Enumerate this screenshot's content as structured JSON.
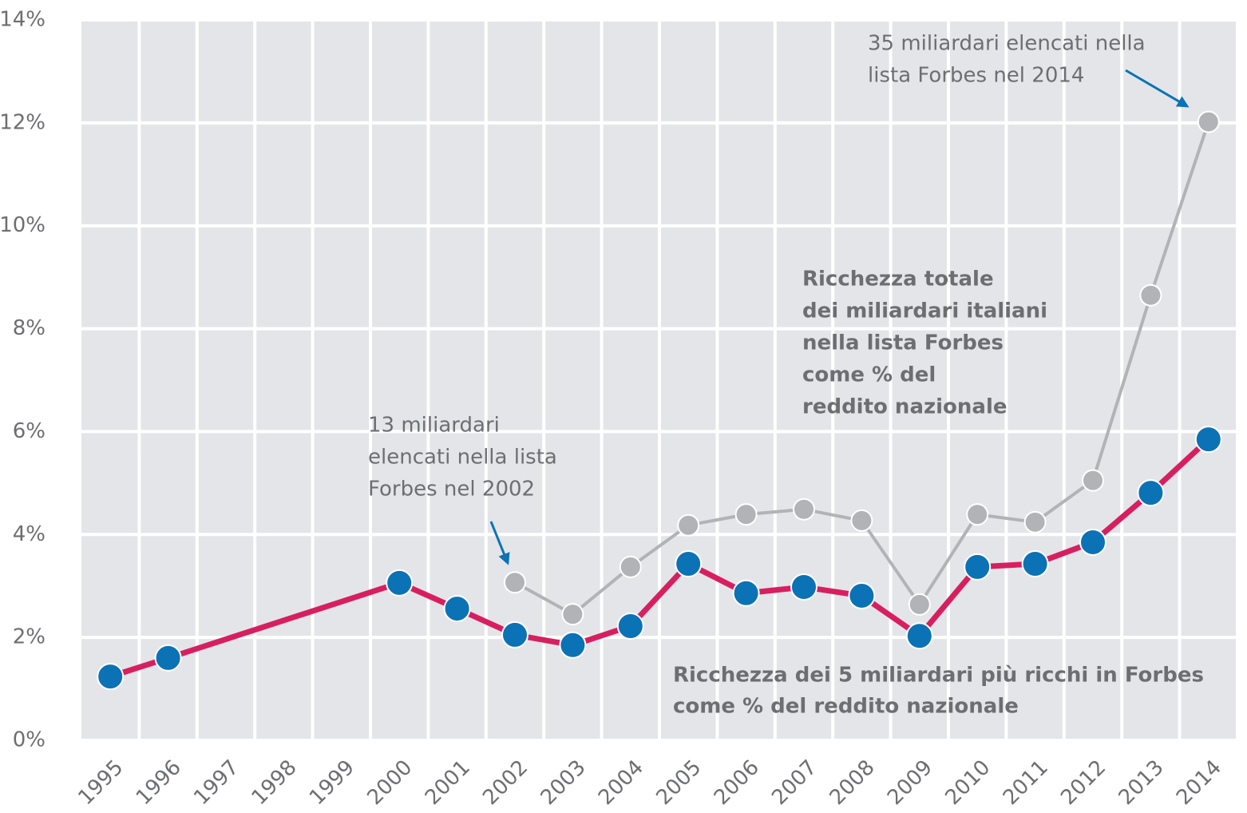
{
  "chart_data": {
    "type": "line",
    "xlim": [
      1994.5,
      2014.5
    ],
    "xticks": [
      1995,
      1996,
      1997,
      1998,
      1999,
      2000,
      2001,
      2002,
      2003,
      2004,
      2005,
      2006,
      2007,
      2008,
      2009,
      2010,
      2011,
      2012,
      2013,
      2014
    ],
    "ylim": [
      0,
      14
    ],
    "yticks": [
      {
        "value": 0,
        "label": "0%"
      },
      {
        "value": 2,
        "label": "2%"
      },
      {
        "value": 4,
        "label": "4%"
      },
      {
        "value": 6,
        "label": "6%"
      },
      {
        "value": 8,
        "label": "8%"
      },
      {
        "value": 10,
        "label": "10%"
      },
      {
        "value": 12,
        "label": "12%"
      },
      {
        "value": 14,
        "label": "14%"
      }
    ],
    "grid": true,
    "series": [
      {
        "color": "#b1b3b6",
        "marker_color": "#b1b3b6",
        "x": [
          2002,
          2003,
          2004,
          2005,
          2006,
          2007,
          2008,
          2009,
          2010,
          2011,
          2012,
          2013,
          2014
        ],
        "values": [
          3.07,
          2.45,
          3.37,
          4.18,
          4.39,
          4.49,
          4.27,
          2.64,
          4.39,
          4.24,
          5.05,
          8.65,
          12.02
        ]
      },
      {
        "color": "#d71f5f",
        "marker_color": "#0b72b5",
        "x": [
          1995,
          1996,
          2000,
          2001,
          2002,
          2003,
          2004,
          2005,
          2006,
          2007,
          2008,
          2009,
          2010,
          2011,
          2012,
          2013,
          2014
        ],
        "values": [
          1.24,
          1.6,
          3.06,
          2.56,
          2.05,
          1.85,
          2.22,
          3.43,
          2.86,
          2.98,
          2.81,
          2.03,
          3.37,
          3.43,
          3.85,
          4.81,
          5.85
        ]
      }
    ],
    "annotations": [
      {
        "lines": [
          "35 miliardari elencati nella",
          "lista Forbes nel 2014"
        ]
      },
      {
        "lines": [
          "Ricchezza totale",
          "dei miliardari italiani",
          "nella lista Forbes",
          "come % del",
          "reddito nazionale"
        ]
      },
      {
        "lines": [
          "13 miliardari",
          "elencati nella lista",
          "Forbes nel 2002"
        ]
      },
      {
        "lines": [
          "Ricchezza dei 5 miliardari più ricchi in Forbes",
          "come % del reddito nazionale"
        ]
      }
    ]
  }
}
